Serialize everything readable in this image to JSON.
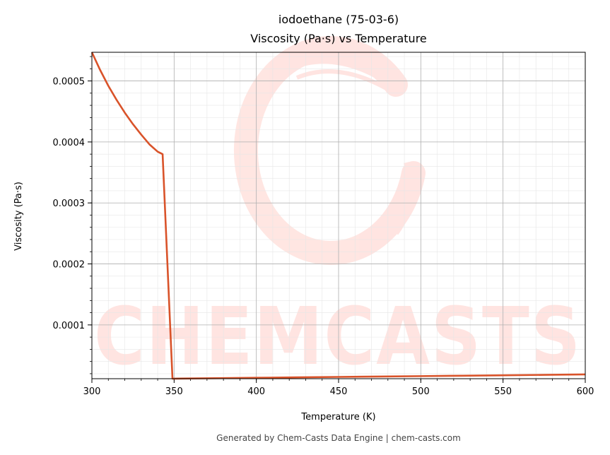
{
  "chart_data": {
    "type": "line",
    "title": "iodoethane (75-03-6)",
    "subtitle": "Viscosity (Pa·s) vs Temperature",
    "xlabel": "Temperature (K)",
    "ylabel": "Viscosity (Pa·s)",
    "xlim": [
      300,
      600
    ],
    "ylim": [
      1.18e-05,
      0.000547
    ],
    "grid": true,
    "x_ticks": [
      300,
      350,
      400,
      450,
      500,
      550,
      600
    ],
    "x_tick_labels": [
      "300",
      "350",
      "400",
      "450",
      "500",
      "550",
      "600"
    ],
    "y_ticks": [
      0.0001,
      0.0002,
      0.0003,
      0.0004,
      0.0005
    ],
    "y_tick_labels": [
      "0.0001",
      "0.0002",
      "0.0003",
      "0.0004",
      "0.0005"
    ],
    "line_color": "#d9532a",
    "series": [
      {
        "x": [
          300,
          305,
          310,
          315,
          320,
          325,
          330,
          335,
          340,
          343,
          349,
          350,
          375,
          400,
          425,
          450,
          475,
          500,
          525,
          550,
          575,
          600
        ],
        "y": [
          0.000547,
          0.000518,
          0.000492,
          0.000469,
          0.000448,
          0.000429,
          0.000412,
          0.000396,
          0.000384,
          0.00038,
          1.18e-05,
          1.19e-05,
          1.26e-05,
          1.33e-05,
          1.4e-05,
          1.47e-05,
          1.54e-05,
          1.6e-05,
          1.67e-05,
          1.74e-05,
          1.81e-05,
          1.88e-05
        ]
      }
    ]
  },
  "watermark": {
    "text": "CHEMCASTS",
    "color": "#ff3b1f"
  },
  "footer": "Generated by Chem-Casts Data Engine | chem-casts.com"
}
